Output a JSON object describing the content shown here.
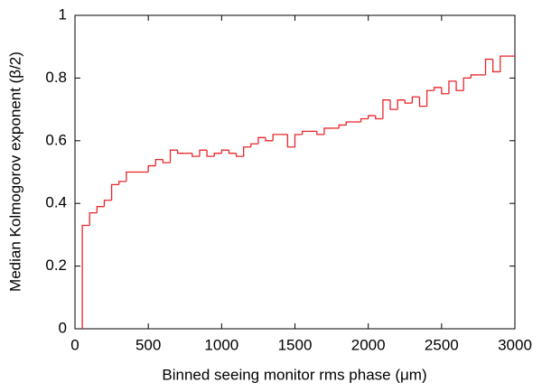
{
  "chart_data": {
    "type": "histogram",
    "xlabel": "Binned seeing monitor rms phase (μm)",
    "ylabel": "Median Kolmogorov exponent (β/2)",
    "bins": [
      50,
      100,
      150,
      200,
      250,
      300,
      350,
      400,
      450,
      500,
      550,
      600,
      650,
      700,
      750,
      800,
      850,
      900,
      950,
      1000,
      1050,
      1100,
      1150,
      1200,
      1250,
      1300,
      1350,
      1400,
      1450,
      1500,
      1550,
      1600,
      1650,
      1700,
      1750,
      1800,
      1850,
      1900,
      1950,
      2000,
      2050,
      2100,
      2150,
      2200,
      2250,
      2300,
      2350,
      2400,
      2450,
      2500,
      2550,
      2600,
      2650,
      2700,
      2750,
      2800,
      2850,
      2900,
      2950,
      3000
    ],
    "values": [
      0.33,
      0.37,
      0.39,
      0.41,
      0.46,
      0.47,
      0.5,
      0.5,
      0.5,
      0.52,
      0.54,
      0.53,
      0.57,
      0.56,
      0.56,
      0.55,
      0.57,
      0.55,
      0.56,
      0.57,
      0.56,
      0.55,
      0.58,
      0.59,
      0.61,
      0.6,
      0.62,
      0.62,
      0.58,
      0.62,
      0.63,
      0.63,
      0.62,
      0.64,
      0.64,
      0.65,
      0.66,
      0.66,
      0.67,
      0.68,
      0.67,
      0.73,
      0.7,
      0.73,
      0.72,
      0.74,
      0.71,
      0.76,
      0.77,
      0.75,
      0.79,
      0.76,
      0.8,
      0.81,
      0.81,
      0.86,
      0.82,
      0.87,
      0.87
    ],
    "color": "#e8262b",
    "xlim": [
      0,
      3000
    ],
    "xticks": [
      0,
      500,
      1000,
      1500,
      2000,
      2500,
      3000
    ],
    "ylim": [
      0,
      1
    ],
    "yticks": [
      0,
      0.2,
      0.4,
      0.6,
      0.8,
      1
    ]
  }
}
